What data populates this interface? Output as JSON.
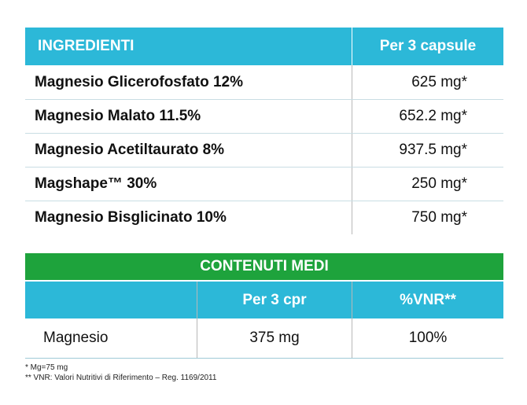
{
  "ingredients_table": {
    "header": [
      "INGREDIENTI",
      "Per 3 capsule"
    ],
    "rows": [
      [
        "Magnesio Glicerofosfato 12%",
        "625 mg*"
      ],
      [
        "Magnesio Malato 11.5%",
        "652.2 mg*"
      ],
      [
        "Magnesio Acetiltaurato 8%",
        "937.5 mg*"
      ],
      [
        "Magshape™ 30%",
        "250 mg*"
      ],
      [
        "Magnesio Bisglicinato 10%",
        "750 mg*"
      ]
    ]
  },
  "contents_table": {
    "title": "CONTENUTI MEDI",
    "header": [
      "Per 3 cpr",
      "%VNR**"
    ],
    "rows": [
      [
        "Magnesio",
        "375 mg",
        "100%"
      ]
    ]
  },
  "footnotes": [
    "*  Mg=75 mg",
    "** VNR: Valori Nutritivi di Riferimento – Reg. 1169/2011"
  ]
}
